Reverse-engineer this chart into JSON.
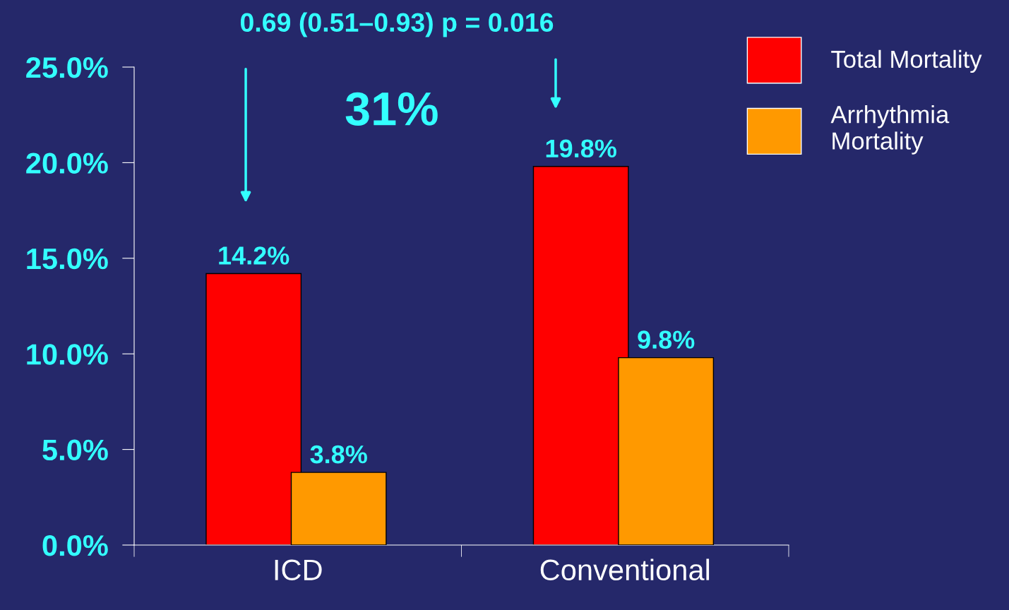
{
  "chart_data": {
    "type": "bar",
    "categories": [
      "ICD",
      "Conventional"
    ],
    "series": [
      {
        "name": "Total Mortality",
        "color": "#ff0000",
        "values": [
          14.2,
          19.8
        ]
      },
      {
        "name": "Arrhythmia\nMortality",
        "color": "#ff9900",
        "values": [
          3.8,
          9.8
        ]
      }
    ],
    "ylim": [
      0,
      25
    ],
    "yticks": [
      {
        "value": 0,
        "label": "0.0%"
      },
      {
        "value": 5,
        "label": "5.0%"
      },
      {
        "value": 10,
        "label": "10.0%"
      },
      {
        "value": 15,
        "label": "15.0%"
      },
      {
        "value": 20,
        "label": "20.0%"
      },
      {
        "value": 25,
        "label": "25.0%"
      }
    ],
    "value_labels": [
      [
        "14.2%",
        "19.8%"
      ],
      [
        "3.8%",
        "9.8%"
      ]
    ],
    "annotations": [
      "0.69 (0.51–0.93) p = 0.016",
      "31%"
    ],
    "legend": "top right",
    "grid": false
  }
}
